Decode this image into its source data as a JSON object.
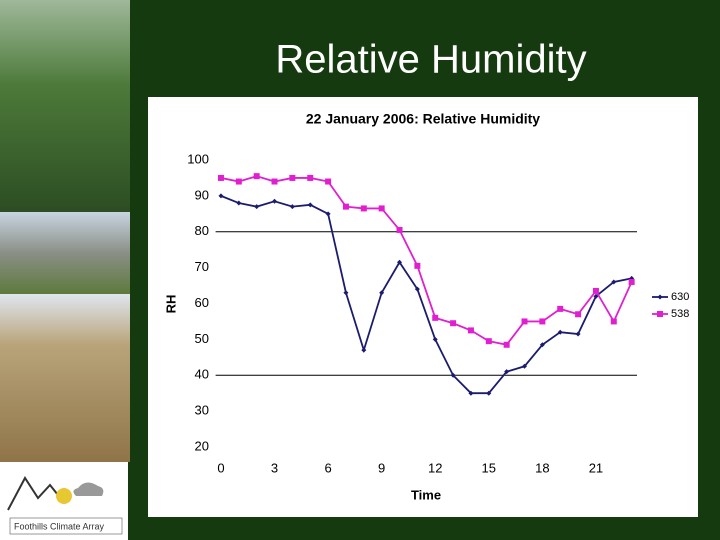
{
  "slide_title": "Relative Humidity",
  "logo_text": "Foothills Climate Array",
  "chart_data": {
    "type": "line",
    "title": "22 January 2006: Relative Humidity",
    "x_label": "Time",
    "y_label": "RH",
    "x": [
      0,
      1,
      2,
      3,
      4,
      5,
      6,
      7,
      8,
      9,
      10,
      11,
      12,
      13,
      14,
      15,
      16,
      17,
      18,
      19,
      20,
      21,
      22,
      23
    ],
    "series": [
      {
        "name": "630",
        "color": "#1c1c6e",
        "marker": "diamond",
        "values": [
          90,
          88,
          87,
          88.5,
          87,
          87.5,
          85,
          63,
          47,
          63,
          71.5,
          64,
          50,
          40,
          35,
          35,
          41,
          42.5,
          48.5,
          52,
          51.5,
          62,
          66,
          67
        ]
      },
      {
        "name": "538",
        "color": "#e020d0",
        "marker": "square",
        "values": [
          95,
          94,
          95.5,
          94,
          95,
          95,
          94,
          87,
          86.5,
          86.5,
          80.5,
          70.5,
          56,
          54.5,
          52.5,
          49.5,
          48.5,
          55,
          55,
          58.5,
          57,
          63.5,
          55,
          66
        ]
      }
    ],
    "xlim": [
      -0.3,
      23.3
    ],
    "ylim": [
      20,
      100
    ],
    "xticks": [
      0,
      3,
      6,
      9,
      12,
      15,
      18,
      21
    ],
    "yticks": [
      20,
      30,
      40,
      50,
      60,
      70,
      80,
      90,
      100
    ],
    "gridlines": [
      40,
      80
    ],
    "legend": "right"
  }
}
